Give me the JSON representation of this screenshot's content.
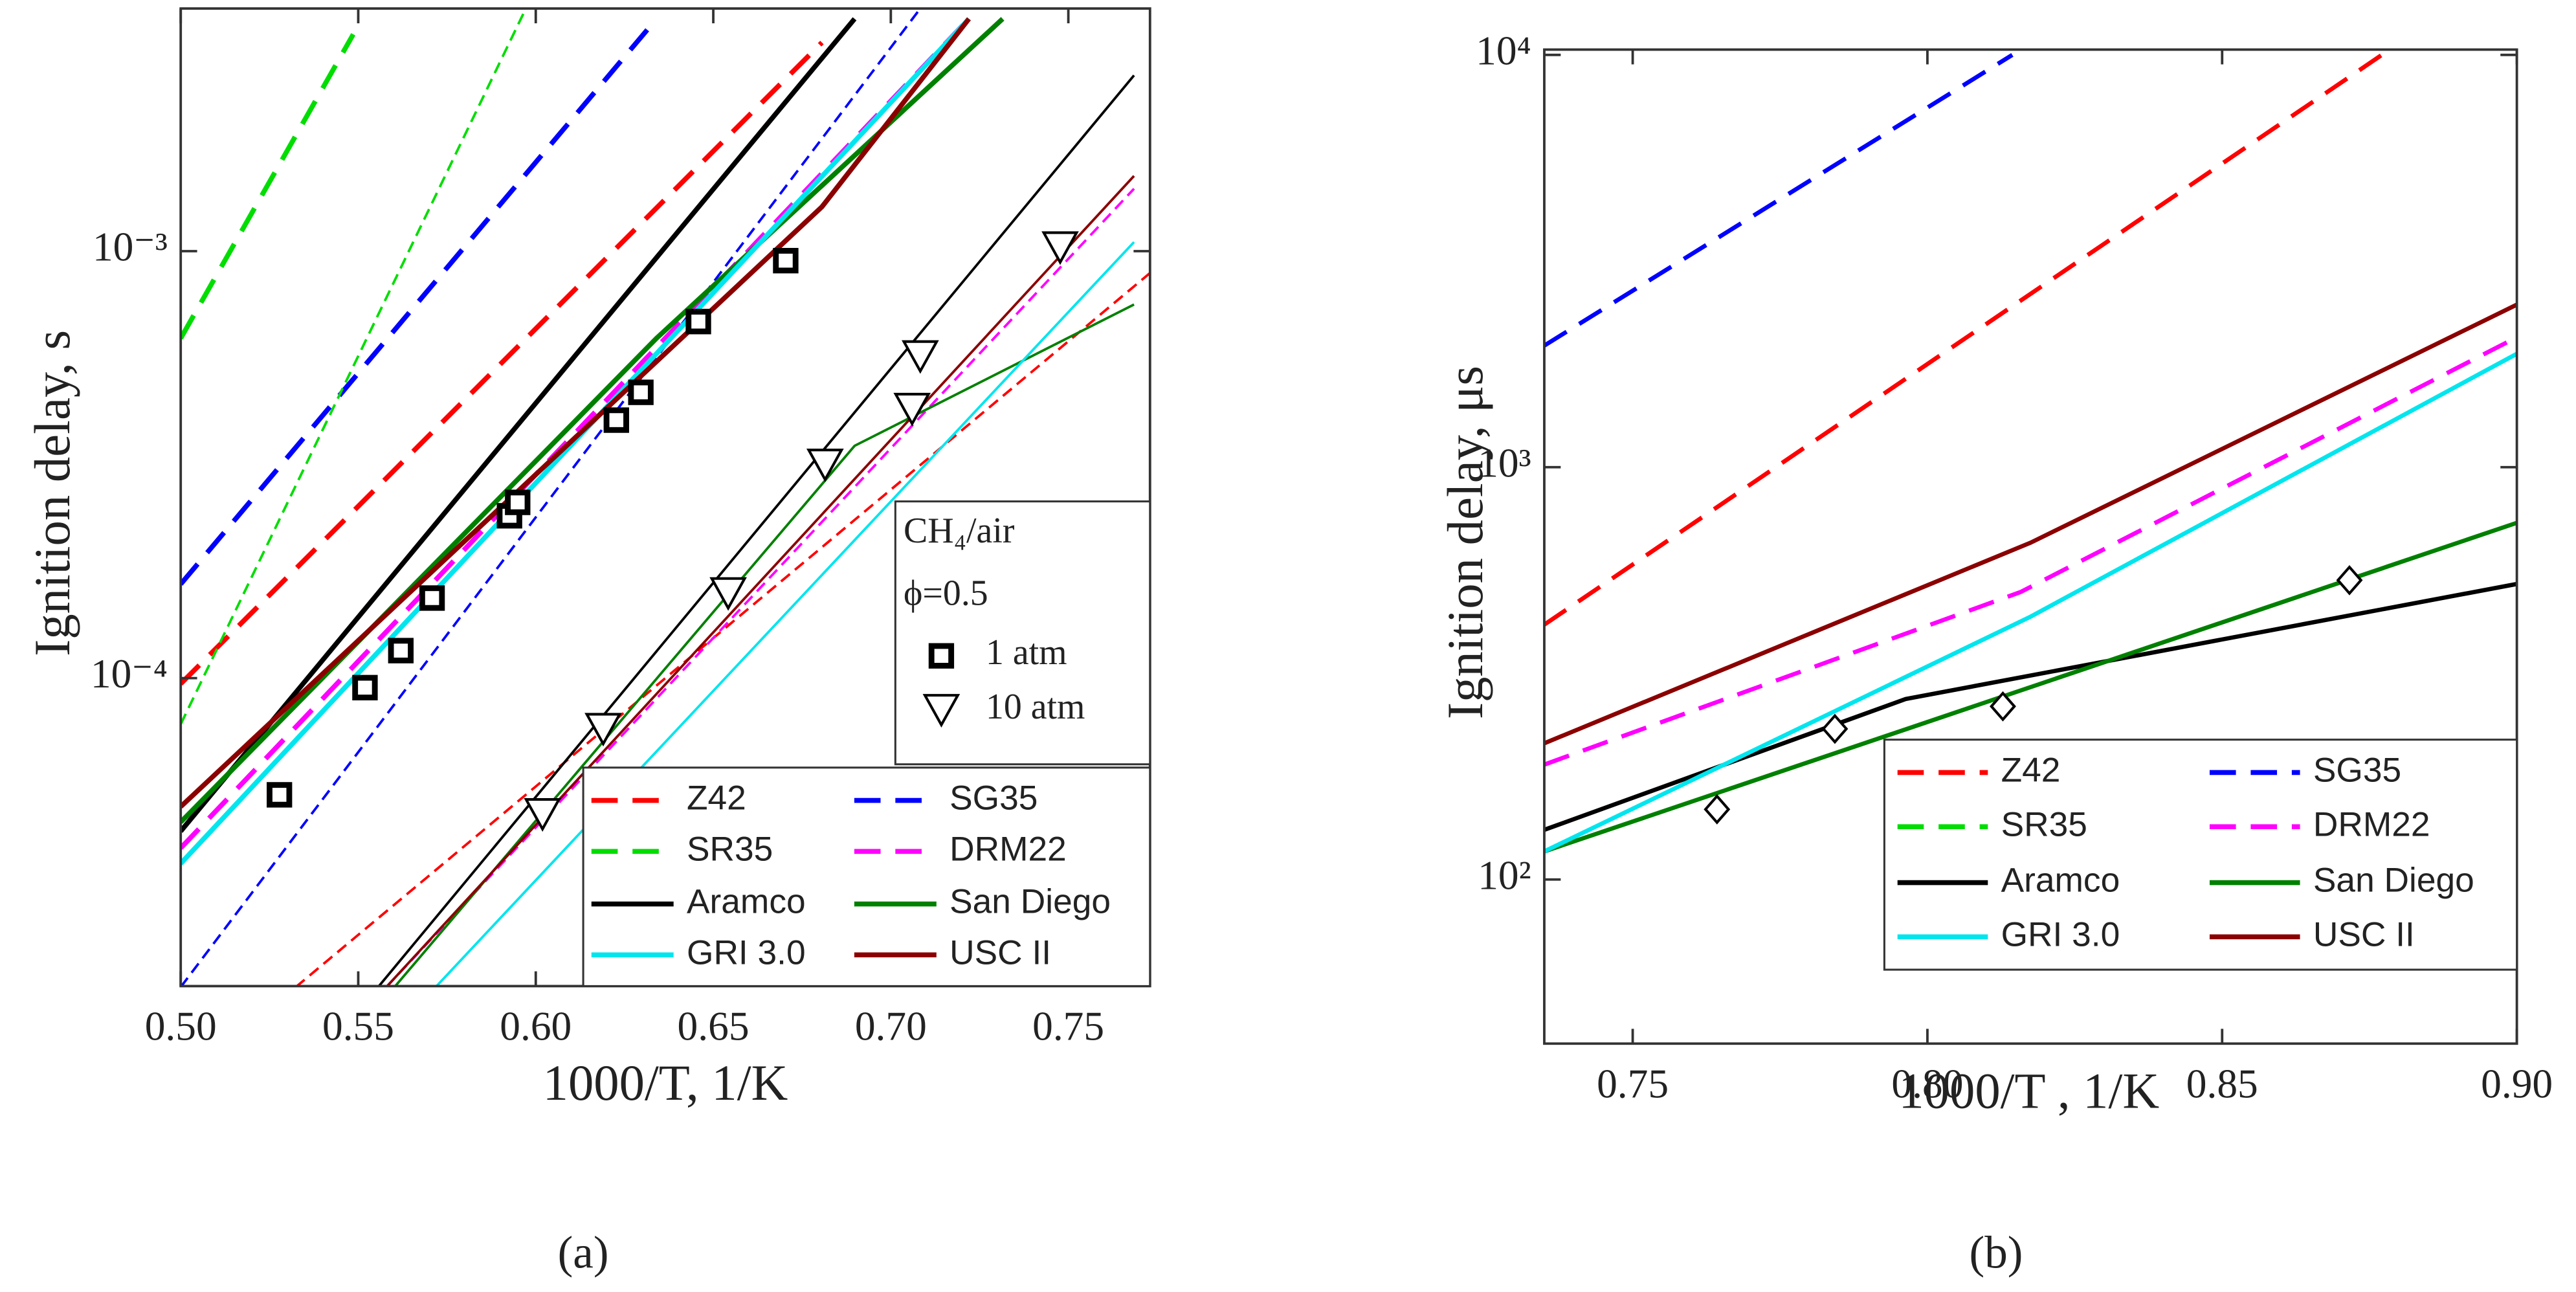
{
  "chart_data": [
    {
      "type": "line",
      "caption": "(a)",
      "xlabel": "1000/T, 1/K",
      "ylabel": "Ignition delay, s",
      "log_y": true,
      "xlim": [
        0.5,
        0.773
      ],
      "ylim": [
        1.9e-05,
        0.0037
      ],
      "xticks": [
        {
          "value": 0.5,
          "label": "0.50"
        },
        0.55,
        {
          "value": 0.6,
          "label": "0.60"
        },
        0.65,
        {
          "value": 0.7,
          "label": "0.70"
        },
        0.75
      ],
      "yticks": [
        {
          "value": 0.0001,
          "label": "10⁻⁴"
        },
        {
          "value": 0.001,
          "label": "10⁻³"
        }
      ],
      "annotations": [
        "CH₄/air",
        "ϕ=0.5"
      ],
      "series": [
        {
          "name": "Z42",
          "color": "#ff0000",
          "dash": true,
          "curves": [
            {
              "x": [
                0.5,
                0.6806
              ],
              "values": [
                9.7e-05,
                0.00308
              ]
            },
            {
              "x": [
                0.5324,
                0.7731
              ],
              "values": [
                1.89e-05,
                0.00089
              ]
            }
          ]
        },
        {
          "name": "SG35",
          "color": "#0000ff",
          "dash": true,
          "curves": [
            {
              "x": [
                0.5,
                0.634
              ],
              "values": [
                0.000166,
                0.0035
              ]
            },
            {
              "x": [
                0.5,
                0.7083
              ],
              "values": [
                1.89e-05,
                0.0037
              ]
            }
          ]
        },
        {
          "name": "SR35",
          "color": "#00dd00",
          "dash": true,
          "curves": [
            {
              "x": [
                0.5,
                0.5486
              ],
              "values": [
                0.000625,
                0.00322
              ]
            },
            {
              "x": [
                0.5,
                0.5972
              ],
              "values": [
                7.8e-05,
                0.0037
              ]
            }
          ]
        },
        {
          "name": "DRM22",
          "color": "#ff00ff",
          "dash": true,
          "curves": [
            {
              "x": [
                0.5,
                0.722
              ],
              "values": [
                4e-05,
                0.0035
              ]
            },
            {
              "x": [
                0.5579,
                0.7685
              ],
              "values": [
                1.89e-05,
                0.0014
              ]
            }
          ]
        },
        {
          "name": "Aramco",
          "color": "#000000",
          "dash": false,
          "curves": [
            {
              "x": [
                0.5,
                0.6898
              ],
              "values": [
                4.38e-05,
                0.0035
              ]
            },
            {
              "x": [
                0.5556,
                0.7685
              ],
              "values": [
                1.89e-05,
                0.00258
              ]
            }
          ]
        },
        {
          "name": "San Diego",
          "color": "#008000",
          "dash": false,
          "curves": [
            {
              "x": [
                0.5,
                0.634,
                0.7315
              ],
              "values": [
                4.6e-05,
                0.000625,
                0.0035
              ]
            },
            {
              "x": [
                0.5602,
                0.6898,
                0.7685
              ],
              "values": [
                1.89e-05,
                0.00035,
                0.00075
              ]
            }
          ]
        },
        {
          "name": "GRI 3.0",
          "color": "#00e5ee",
          "dash": false,
          "curves": [
            {
              "x": [
                0.5,
                0.722
              ],
              "values": [
                3.68e-05,
                0.0035
              ]
            },
            {
              "x": [
                0.5718,
                0.7685
              ],
              "values": [
                1.89e-05,
                0.00105
              ]
            }
          ]
        },
        {
          "name": "USC II",
          "color": "#8b0000",
          "dash": false,
          "curves": [
            {
              "x": [
                0.5,
                0.6806,
                0.722
              ],
              "values": [
                5e-05,
                0.00127,
                0.0035
              ]
            },
            {
              "x": [
                0.5579,
                0.7685
              ],
              "values": [
                1.89e-05,
                0.0015
              ]
            }
          ]
        }
      ],
      "markers": [
        {
          "name": "1 atm",
          "symbol": "square",
          "x": [
            0.5278,
            0.5519,
            0.562,
            0.5708,
            0.5926,
            0.5949,
            0.6227,
            0.6296,
            0.6458,
            0.6704
          ],
          "values": [
            5.33e-05,
            9.5e-05,
            0.000116,
            0.000154,
            0.00024,
            0.000258,
            0.000402,
            0.000467,
            0.000684,
            0.00095
          ]
        },
        {
          "name": "10 atm",
          "symbol": "triangle-down",
          "x": [
            0.6019,
            0.619,
            0.6542,
            0.6815,
            0.706,
            0.7083,
            0.7477
          ],
          "values": [
            4.8e-05,
            7.6e-05,
            0.000158,
            0.000316,
            0.000427,
            0.000567,
            0.00102
          ]
        }
      ]
    },
    {
      "type": "line",
      "caption": "(b)",
      "xlabel": "1000/T , 1/K",
      "ylabel": "Ignition delay, μs",
      "log_y": true,
      "xlim": [
        0.735,
        0.9
      ],
      "ylim": [
        40,
        10300
      ],
      "xticks": [
        0.75,
        {
          "value": 0.8,
          "label": "0.80"
        },
        0.85,
        {
          "value": 0.9,
          "label": "0.90"
        }
      ],
      "yticks": [
        {
          "value": 100,
          "label": "10²"
        },
        {
          "value": 1000,
          "label": "10³"
        },
        {
          "value": 10000,
          "label": "10⁴"
        }
      ],
      "series": [
        {
          "name": "Z42",
          "color": "#ff0000",
          "dash": true,
          "curves": [
            {
              "x": [
                0.735,
                0.8771
              ],
              "values": [
                415,
                10000
              ]
            }
          ]
        },
        {
          "name": "SG35",
          "color": "#0000ff",
          "dash": true,
          "curves": [
            {
              "x": [
                0.735,
                0.8144
              ],
              "values": [
                1972,
                10000
              ]
            }
          ]
        },
        {
          "name": "SR35",
          "color": "#00dd00",
          "dash": true,
          "curves": []
        },
        {
          "name": "DRM22",
          "color": "#ff00ff",
          "dash": true,
          "curves": [
            {
              "x": [
                0.735,
                0.8158,
                0.9
              ],
              "values": [
                190,
                498,
                2066
              ]
            }
          ]
        },
        {
          "name": "Aramco",
          "color": "#000000",
          "dash": false,
          "curves": [
            {
              "x": [
                0.735,
                0.7963,
                0.9
              ],
              "values": [
                132,
                274,
                521
              ]
            }
          ]
        },
        {
          "name": "San Diego",
          "color": "#008000",
          "dash": false,
          "curves": [
            {
              "x": [
                0.735,
                0.9
              ],
              "values": [
                117,
                733
              ]
            }
          ]
        },
        {
          "name": "GRI 3.0",
          "color": "#00e5ee",
          "dash": false,
          "curves": [
            {
              "x": [
                0.735,
                0.8175,
                0.9
              ],
              "values": [
                117,
                434,
                1884
              ]
            }
          ]
        },
        {
          "name": "USC II",
          "color": "#8b0000",
          "dash": false,
          "curves": [
            {
              "x": [
                0.735,
                0.8175,
                0.9
              ],
              "values": [
                214,
                656,
                2479
              ]
            }
          ]
        }
      ],
      "markers": [
        {
          "symbol": "diamond",
          "x": [
            0.7643,
            0.7843,
            0.8128,
            0.8716
          ],
          "values": [
            148,
            232,
            263,
            532
          ]
        }
      ]
    }
  ]
}
